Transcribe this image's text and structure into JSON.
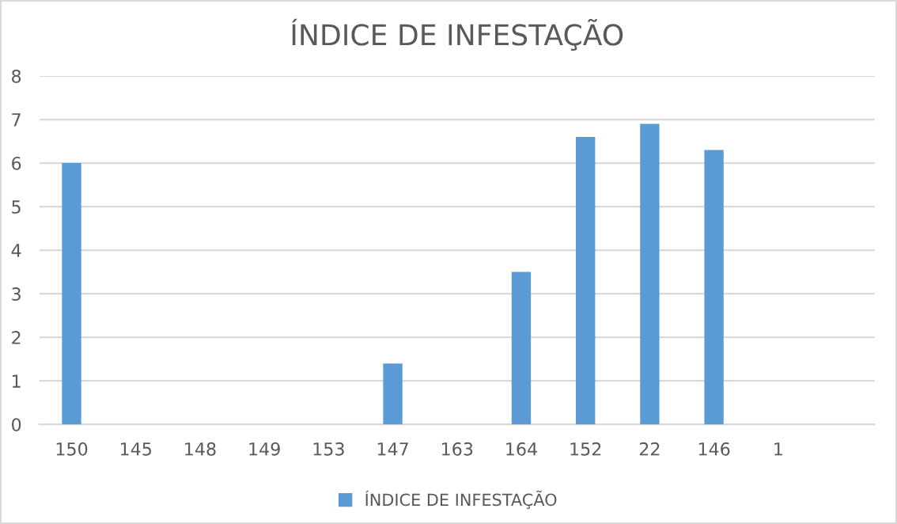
{
  "chart_data": {
    "type": "bar",
    "title": "ÍNDICE DE INFESTAÇÃO",
    "categories": [
      "150",
      "145",
      "148",
      "149",
      "153",
      "147",
      "163",
      "164",
      "152",
      "22",
      "146",
      "1",
      null
    ],
    "series": [
      {
        "name": "ÍNDICE DE INFESTAÇÃO",
        "color": "#5b9bd5",
        "values": [
          6,
          0,
          0,
          0,
          0,
          1.4,
          0,
          3.5,
          6.6,
          6.9,
          6.3,
          0,
          null
        ]
      }
    ],
    "ylim": [
      0,
      8
    ],
    "yticks": [
      0,
      1,
      2,
      3,
      4,
      5,
      6,
      7,
      8
    ],
    "grid": "y",
    "legend": "bottom"
  }
}
